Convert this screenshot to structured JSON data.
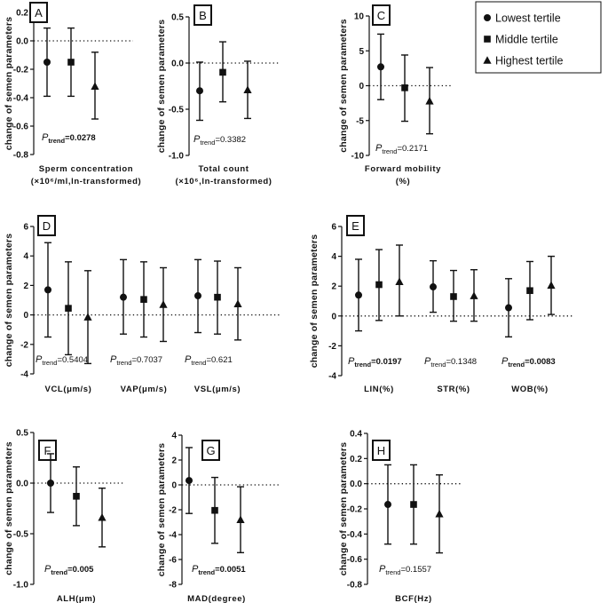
{
  "legend": {
    "items": [
      {
        "label": "Lowest tertile",
        "marker": "circle"
      },
      {
        "label": "Middle tertile",
        "marker": "square"
      },
      {
        "label": "Highest tertile",
        "marker": "triangle"
      }
    ]
  },
  "chart_data": [
    {
      "id": "A",
      "type": "errorbar",
      "panel_label": "A",
      "ylabel": "change of semen parameters",
      "ylim": [
        -0.8,
        0.2
      ],
      "yticks": [
        0.2,
        0.0,
        -0.2,
        -0.4,
        -0.6,
        -0.8
      ],
      "tick_labels": [
        "0.2",
        "0.0",
        "-0.2",
        "-0.4",
        "-0.6",
        "-0.8"
      ],
      "groups": [
        {
          "xlabel_lines": [
            "Sperm concentration",
            "(×10⁶/ml,ln-transformed)"
          ],
          "p_label": "P",
          "p_sub": "trend",
          "p_value": "=0.0278",
          "p_bold": true,
          "series": [
            {
              "mean": -0.15,
              "low": -0.39,
              "high": 0.09
            },
            {
              "mean": -0.15,
              "low": -0.39,
              "high": 0.09
            },
            {
              "mean": -0.32,
              "low": -0.55,
              "high": -0.08
            }
          ]
        }
      ]
    },
    {
      "id": "B",
      "type": "errorbar",
      "panel_label": "B",
      "ylabel": "change of semen parameters",
      "ylim": [
        -1.0,
        0.5
      ],
      "yticks": [
        0.5,
        0.0,
        -0.5,
        -1.0
      ],
      "tick_labels": [
        "0.5",
        "0.0",
        "-0.5",
        "-1.0"
      ],
      "groups": [
        {
          "xlabel_lines": [
            "Total count",
            "(×10⁶,ln-transformed)"
          ],
          "p_label": "P",
          "p_sub": "trend",
          "p_value": "=0.3382",
          "p_bold": false,
          "series": [
            {
              "mean": -0.3,
              "low": -0.62,
              "high": 0.01
            },
            {
              "mean": -0.1,
              "low": -0.42,
              "high": 0.23
            },
            {
              "mean": -0.29,
              "low": -0.6,
              "high": 0.02
            }
          ]
        }
      ]
    },
    {
      "id": "C",
      "type": "errorbar",
      "panel_label": "C",
      "ylabel": "change of semen parameters",
      "ylim": [
        -10,
        10
      ],
      "yticks": [
        10,
        5,
        0,
        -5,
        -10
      ],
      "tick_labels": [
        "10",
        "5",
        "0",
        "-5",
        "-10"
      ],
      "groups": [
        {
          "xlabel_lines": [
            "Forward mobility",
            "(%)"
          ],
          "p_label": "P",
          "p_sub": "trend",
          "p_value": "=0.2171",
          "p_bold": false,
          "series": [
            {
              "mean": 2.7,
              "low": -2.0,
              "high": 7.4
            },
            {
              "mean": -0.3,
              "low": -5.1,
              "high": 4.4
            },
            {
              "mean": -2.2,
              "low": -6.9,
              "high": 2.6
            }
          ]
        }
      ]
    },
    {
      "id": "D",
      "type": "errorbar",
      "panel_label": "D",
      "ylabel": "change of semen parameters",
      "ylim": [
        -4,
        6
      ],
      "yticks": [
        6,
        4,
        2,
        0,
        -2,
        -4
      ],
      "tick_labels": [
        "6",
        "4",
        "2",
        "0",
        "-2",
        "-4"
      ],
      "groups": [
        {
          "xlabel_lines": [
            "VCL(μm/s)"
          ],
          "p_label": "P",
          "p_sub": "trend",
          "p_value": "=0.5404",
          "p_bold": false,
          "series": [
            {
              "mean": 1.7,
              "low": -1.5,
              "high": 4.9
            },
            {
              "mean": 0.45,
              "low": -2.7,
              "high": 3.6
            },
            {
              "mean": -0.15,
              "low": -3.3,
              "high": 3.0
            }
          ]
        },
        {
          "xlabel_lines": [
            "VAP(μm/s)"
          ],
          "p_label": "P",
          "p_sub": "trend",
          "p_value": "=0.7037",
          "p_bold": false,
          "series": [
            {
              "mean": 1.2,
              "low": -1.3,
              "high": 3.75
            },
            {
              "mean": 1.05,
              "low": -1.5,
              "high": 3.6
            },
            {
              "mean": 0.7,
              "low": -1.8,
              "high": 3.2
            }
          ]
        },
        {
          "xlabel_lines": [
            "VSL(μm/s)"
          ],
          "p_label": "P",
          "p_sub": "trend",
          "p_value": "=0.621",
          "p_bold": false,
          "series": [
            {
              "mean": 1.3,
              "low": -1.2,
              "high": 3.75
            },
            {
              "mean": 1.2,
              "low": -1.3,
              "high": 3.65
            },
            {
              "mean": 0.75,
              "low": -1.7,
              "high": 3.2
            }
          ]
        }
      ]
    },
    {
      "id": "E",
      "type": "errorbar",
      "panel_label": "E",
      "ylabel": "change of semen parameters",
      "ylim": [
        -4,
        6
      ],
      "yticks": [
        6,
        4,
        2,
        0,
        -2,
        -4
      ],
      "tick_labels": [
        "6",
        "4",
        "2",
        "0",
        "-2",
        "-4"
      ],
      "groups": [
        {
          "xlabel_lines": [
            "LIN(%)"
          ],
          "p_label": "P",
          "p_sub": "trend",
          "p_value": "=0.0197",
          "p_bold": true,
          "series": [
            {
              "mean": 1.4,
              "low": -1.0,
              "high": 3.8
            },
            {
              "mean": 2.1,
              "low": -0.3,
              "high": 4.45
            },
            {
              "mean": 2.3,
              "low": 0.0,
              "high": 4.75
            }
          ]
        },
        {
          "xlabel_lines": [
            "STR(%)"
          ],
          "p_label": "P",
          "p_sub": "trend",
          "p_value": "=0.1348",
          "p_bold": false,
          "series": [
            {
              "mean": 1.95,
              "low": 0.25,
              "high": 3.7
            },
            {
              "mean": 1.3,
              "low": -0.35,
              "high": 3.05
            },
            {
              "mean": 1.35,
              "low": -0.35,
              "high": 3.1
            }
          ]
        },
        {
          "xlabel_lines": [
            "WOB(%)"
          ],
          "p_label": "P",
          "p_sub": "trend",
          "p_value": "=0.0083",
          "p_bold": true,
          "series": [
            {
              "mean": 0.55,
              "low": -1.4,
              "high": 2.5
            },
            {
              "mean": 1.7,
              "low": -0.25,
              "high": 3.65
            },
            {
              "mean": 2.05,
              "low": 0.1,
              "high": 4.0
            }
          ]
        }
      ]
    },
    {
      "id": "F",
      "type": "errorbar",
      "panel_label": "F",
      "ylabel": "change of semen parameters",
      "ylim": [
        -1.0,
        0.5
      ],
      "yticks": [
        0.5,
        0.0,
        -0.5,
        -1.0
      ],
      "tick_labels": [
        "0.5",
        "0.0",
        "-0.5",
        "-1.0"
      ],
      "groups": [
        {
          "xlabel_lines": [
            "ALH(μm)"
          ],
          "p_label": "P",
          "p_sub": "trend",
          "p_value": "=0.005",
          "p_bold": true,
          "series": [
            {
              "mean": 0.0,
              "low": -0.29,
              "high": 0.29
            },
            {
              "mean": -0.13,
              "low": -0.42,
              "high": 0.16
            },
            {
              "mean": -0.34,
              "low": -0.63,
              "high": -0.05
            }
          ]
        }
      ]
    },
    {
      "id": "G",
      "type": "errorbar",
      "panel_label": "G",
      "ylabel": "change of semen parameters",
      "ylim": [
        -8,
        4
      ],
      "yticks": [
        4,
        2,
        0,
        -2,
        -4,
        -6,
        -8
      ],
      "tick_labels": [
        "4",
        "2",
        "0",
        "-2",
        "-4",
        "-6",
        "-8"
      ],
      "groups": [
        {
          "xlabel_lines": [
            "MAD(degree)"
          ],
          "p_label": "P",
          "p_sub": "trend",
          "p_value": "=0.0051",
          "p_bold": true,
          "series": [
            {
              "mean": 0.35,
              "low": -2.3,
              "high": 3.0
            },
            {
              "mean": -2.05,
              "low": -4.7,
              "high": 0.6
            },
            {
              "mean": -2.8,
              "low": -5.45,
              "high": -0.15
            }
          ]
        }
      ]
    },
    {
      "id": "H",
      "type": "errorbar",
      "panel_label": "H",
      "ylabel": "change of semen parameters",
      "ylim": [
        -0.8,
        0.4
      ],
      "yticks": [
        0.4,
        0.2,
        0.0,
        -0.2,
        -0.4,
        -0.6,
        -0.8
      ],
      "tick_labels": [
        "0.4",
        "0.2",
        "0.0",
        "-0.2",
        "-0.4",
        "-0.6",
        "-0.8"
      ],
      "groups": [
        {
          "xlabel_lines": [
            "BCF(Hz)"
          ],
          "p_label": "P",
          "p_sub": "trend",
          "p_value": "=0.1557",
          "p_bold": false,
          "series": [
            {
              "mean": -0.165,
              "low": -0.48,
              "high": 0.15
            },
            {
              "mean": -0.165,
              "low": -0.48,
              "high": 0.15
            },
            {
              "mean": -0.24,
              "low": -0.55,
              "high": 0.07
            }
          ]
        }
      ]
    }
  ]
}
